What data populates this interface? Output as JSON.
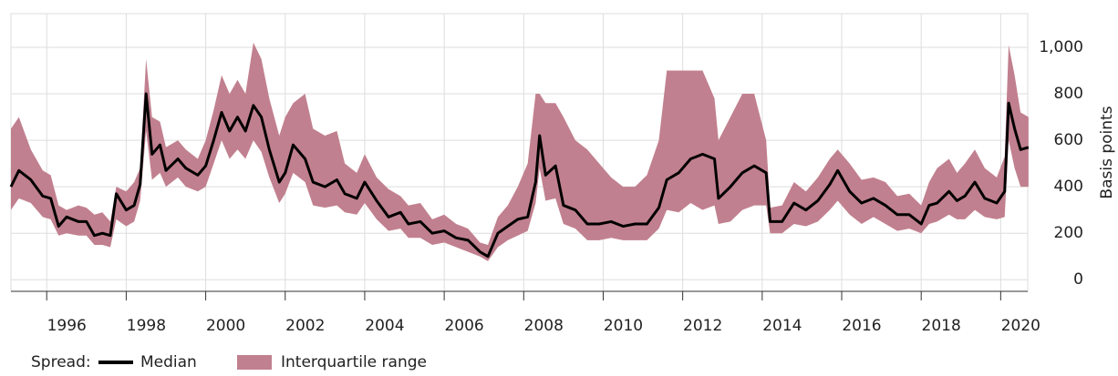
{
  "chart_data": {
    "type": "line",
    "y_label": "Basis points",
    "legend_title": "Spread:",
    "x": [
      1995.1,
      1995.3,
      1995.6,
      1995.9,
      1996.1,
      1996.3,
      1996.5,
      1996.8,
      1997.0,
      1997.2,
      1997.4,
      1997.6,
      1997.75,
      1998.0,
      1998.2,
      1998.35,
      1998.5,
      1998.65,
      1998.85,
      1999.0,
      1999.3,
      1999.5,
      1999.8,
      2000.0,
      2000.2,
      2000.4,
      2000.6,
      2000.8,
      2001.0,
      2001.2,
      2001.4,
      2001.6,
      2001.85,
      2002.0,
      2002.2,
      2002.5,
      2002.7,
      2003.0,
      2003.3,
      2003.5,
      2003.8,
      2004.0,
      2004.3,
      2004.6,
      2004.9,
      2005.1,
      2005.4,
      2005.7,
      2006.0,
      2006.3,
      2006.6,
      2006.9,
      2007.1,
      2007.35,
      2007.6,
      2007.85,
      2008.1,
      2008.3,
      2008.4,
      2008.55,
      2008.8,
      2009.0,
      2009.3,
      2009.6,
      2009.9,
      2010.2,
      2010.5,
      2010.8,
      2011.1,
      2011.4,
      2011.6,
      2011.9,
      2012.2,
      2012.5,
      2012.8,
      2012.9,
      2013.2,
      2013.5,
      2013.8,
      2014.1,
      2014.2,
      2014.5,
      2014.8,
      2015.1,
      2015.4,
      2015.7,
      2015.9,
      2016.2,
      2016.5,
      2016.8,
      2017.1,
      2017.4,
      2017.7,
      2018.0,
      2018.2,
      2018.4,
      2018.7,
      2018.9,
      2019.1,
      2019.35,
      2019.6,
      2019.9,
      2020.1,
      2020.2,
      2020.35,
      2020.5,
      2020.7
    ],
    "series": [
      {
        "name": "Median",
        "color": "#000000",
        "values": [
          400,
          470,
          430,
          360,
          350,
          230,
          270,
          250,
          250,
          190,
          200,
          190,
          370,
          300,
          320,
          410,
          800,
          540,
          580,
          470,
          520,
          480,
          450,
          490,
          600,
          720,
          640,
          700,
          640,
          750,
          700,
          560,
          420,
          460,
          580,
          520,
          420,
          400,
          430,
          370,
          350,
          420,
          340,
          270,
          290,
          240,
          250,
          200,
          210,
          180,
          170,
          120,
          100,
          200,
          230,
          260,
          270,
          420,
          620,
          450,
          490,
          320,
          300,
          240,
          240,
          250,
          230,
          240,
          240,
          310,
          430,
          460,
          520,
          540,
          520,
          350,
          400,
          460,
          490,
          460,
          250,
          250,
          330,
          300,
          340,
          410,
          470,
          380,
          330,
          350,
          320,
          280,
          280,
          240,
          320,
          330,
          380,
          340,
          360,
          420,
          350,
          330,
          380,
          760,
          650,
          560,
          570
        ]
      },
      {
        "name": "Interquartile range",
        "color": "#c1808f",
        "low": [
          300,
          350,
          330,
          270,
          260,
          190,
          200,
          190,
          190,
          150,
          150,
          140,
          260,
          230,
          250,
          340,
          640,
          430,
          460,
          400,
          440,
          400,
          380,
          400,
          500,
          600,
          520,
          560,
          520,
          600,
          550,
          440,
          330,
          370,
          460,
          420,
          320,
          310,
          320,
          290,
          280,
          330,
          260,
          210,
          220,
          180,
          180,
          150,
          160,
          140,
          120,
          100,
          80,
          140,
          170,
          190,
          210,
          330,
          480,
          340,
          350,
          240,
          220,
          170,
          170,
          180,
          170,
          170,
          170,
          220,
          300,
          290,
          330,
          300,
          320,
          240,
          250,
          300,
          320,
          320,
          200,
          200,
          240,
          230,
          250,
          300,
          340,
          280,
          240,
          270,
          240,
          210,
          220,
          200,
          240,
          250,
          280,
          260,
          260,
          300,
          270,
          260,
          270,
          600,
          480,
          400,
          400
        ],
        "high": [
          650,
          700,
          560,
          470,
          450,
          320,
          300,
          320,
          310,
          280,
          290,
          250,
          400,
          380,
          420,
          480,
          950,
          700,
          680,
          570,
          600,
          560,
          520,
          600,
          730,
          880,
          800,
          860,
          800,
          1020,
          950,
          780,
          620,
          700,
          760,
          800,
          650,
          620,
          640,
          500,
          460,
          540,
          440,
          390,
          360,
          320,
          330,
          260,
          280,
          240,
          220,
          160,
          150,
          270,
          320,
          400,
          500,
          800,
          800,
          760,
          760,
          700,
          600,
          560,
          500,
          440,
          400,
          400,
          450,
          600,
          900,
          900,
          900,
          900,
          780,
          600,
          700,
          800,
          800,
          600,
          310,
          320,
          420,
          380,
          440,
          520,
          560,
          500,
          430,
          440,
          420,
          360,
          370,
          320,
          420,
          480,
          520,
          460,
          500,
          560,
          480,
          440,
          530,
          1010,
          880,
          720,
          700
        ]
      }
    ],
    "xlim": [
      1995.1,
      2020.68
    ],
    "ylim": [
      -50,
      1145
    ],
    "xticks": [
      1996,
      1998,
      2000,
      2002,
      2004,
      2006,
      2008,
      2010,
      2012,
      2014,
      2016,
      2018,
      2020
    ],
    "yticks": [
      0,
      200,
      400,
      600,
      800,
      {
        "value": 1000,
        "label": "1,000"
      }
    ],
    "grid": true
  }
}
